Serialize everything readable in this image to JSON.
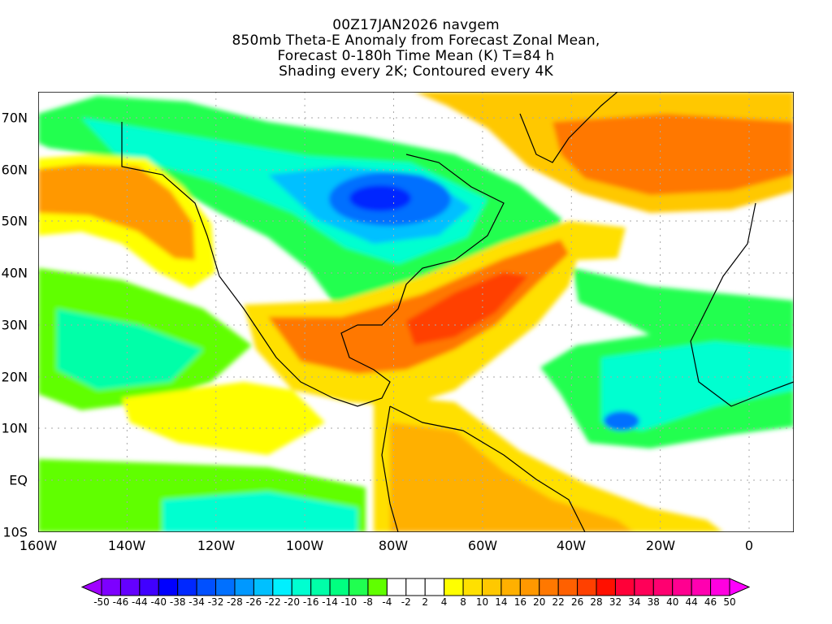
{
  "title": {
    "line1": "00Z17JAN2026 navgem",
    "line2": "850mb Theta-E Anomaly from Forecast Zonal Mean,",
    "line3": "Forecast 0-180h Time Mean (K) T=84 h",
    "line4": "Shading every 2K; Contoured every 4K"
  },
  "map": {
    "lon_range": [
      -160,
      10
    ],
    "lat_range": [
      -10,
      75
    ],
    "x_ticks": [
      "160W",
      "140W",
      "120W",
      "100W",
      "80W",
      "60W",
      "40W",
      "20W",
      "0"
    ],
    "y_ticks": [
      "70N",
      "60N",
      "50N",
      "40N",
      "30N",
      "20N",
      "10N",
      "EQ",
      "10S"
    ]
  },
  "colorbar": {
    "labels": [
      "-50",
      "-46",
      "-44",
      "-40",
      "-38",
      "-34",
      "-32",
      "-28",
      "-26",
      "-22",
      "-20",
      "-16",
      "-14",
      "-10",
      "-8",
      "-4",
      "-2",
      "2",
      "4",
      "8",
      "10",
      "14",
      "16",
      "20",
      "22",
      "26",
      "28",
      "32",
      "34",
      "38",
      "40",
      "44",
      "46",
      "50"
    ],
    "colors": [
      "#7d00ff",
      "#6400ff",
      "#4000ff",
      "#0000ff",
      "#0028ff",
      "#0050ff",
      "#0070ff",
      "#0098ff",
      "#00c0ff",
      "#00f0ff",
      "#00ffd0",
      "#00ffa8",
      "#00ff80",
      "#20ff50",
      "#60ff00",
      "#ffffff",
      "#ffffff",
      "#ffffff",
      "#ffff00",
      "#ffe000",
      "#ffc800",
      "#ffb000",
      "#ff9800",
      "#ff7800",
      "#ff6000",
      "#ff4000",
      "#ff1000",
      "#ff0038",
      "#ff0058",
      "#ff0070",
      "#ff0090",
      "#ff00b0",
      "#ff00e0"
    ],
    "low_extend_color": "#a000ff",
    "high_extend_color": "#ff00ff"
  }
}
